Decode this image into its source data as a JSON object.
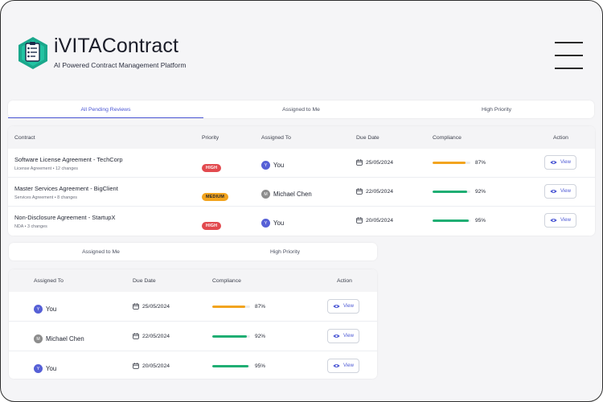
{
  "app": {
    "title": "iVITAContract",
    "subtitle": "AI Powered Contract Management Platform"
  },
  "colors": {
    "accent": "#4a56d4",
    "high": "#e24a4f",
    "medium": "#f2a41f",
    "bar_orange": "#f2a41f",
    "bar_green": "#1fae73"
  },
  "tabs1": [
    {
      "label": "All Pending Reviews",
      "active": true
    },
    {
      "label": "Assigned to Me",
      "active": false
    },
    {
      "label": "High Priority",
      "active": false
    }
  ],
  "tabs2": [
    {
      "label": "Assigned to Me",
      "active": false
    },
    {
      "label": "High Priority",
      "active": false
    }
  ],
  "table1": {
    "headers": {
      "contract": "Contract",
      "priority": "Priority",
      "assigned": "Assigned To",
      "due": "Due Date",
      "compliance": "Compliance",
      "action": "Action"
    },
    "rows": [
      {
        "name": "Software License Agreement - TechCorp",
        "meta": "License Agreement • 12 changes",
        "priority": "HIGH",
        "priority_level": "high",
        "assignee": "You",
        "avatar": "Y",
        "avatar_type": "you",
        "due": "25/05/2024",
        "compliance": "87%",
        "compliance_value": 87,
        "bar_color": "#f2a41f",
        "action": "View"
      },
      {
        "name": "Master Services Agreement - BigClient",
        "meta": "Services Agreement • 8 changes",
        "priority": "MEDIUM",
        "priority_level": "medium",
        "assignee": "Michael Chen",
        "avatar": "M",
        "avatar_type": "mc",
        "due": "22/05/2024",
        "compliance": "92%",
        "compliance_value": 92,
        "bar_color": "#1fae73",
        "action": "View"
      },
      {
        "name": "Non-Disclosure Agreement - StartupX",
        "meta": "NDA • 3 changes",
        "priority": "HIGH",
        "priority_level": "high",
        "assignee": "You",
        "avatar": "Y",
        "avatar_type": "you",
        "due": "20/05/2024",
        "compliance": "95%",
        "compliance_value": 95,
        "bar_color": "#1fae73",
        "action": "View"
      }
    ]
  },
  "table2": {
    "headers": {
      "assigned": "Assigned To",
      "due": "Due Date",
      "compliance": "Compliance",
      "action": "Action"
    },
    "rows": [
      {
        "assignee": "You",
        "avatar": "Y",
        "avatar_type": "you",
        "due": "25/05/2024",
        "compliance": "87%",
        "compliance_value": 87,
        "bar_color": "#f2a41f",
        "action": "View"
      },
      {
        "assignee": "Michael Chen",
        "avatar": "M",
        "avatar_type": "mc",
        "due": "22/05/2024",
        "compliance": "92%",
        "compliance_value": 92,
        "bar_color": "#1fae73",
        "action": "View"
      },
      {
        "assignee": "You",
        "avatar": "Y",
        "avatar_type": "you",
        "due": "20/05/2024",
        "compliance": "95%",
        "compliance_value": 95,
        "bar_color": "#1fae73",
        "action": "View"
      }
    ]
  }
}
